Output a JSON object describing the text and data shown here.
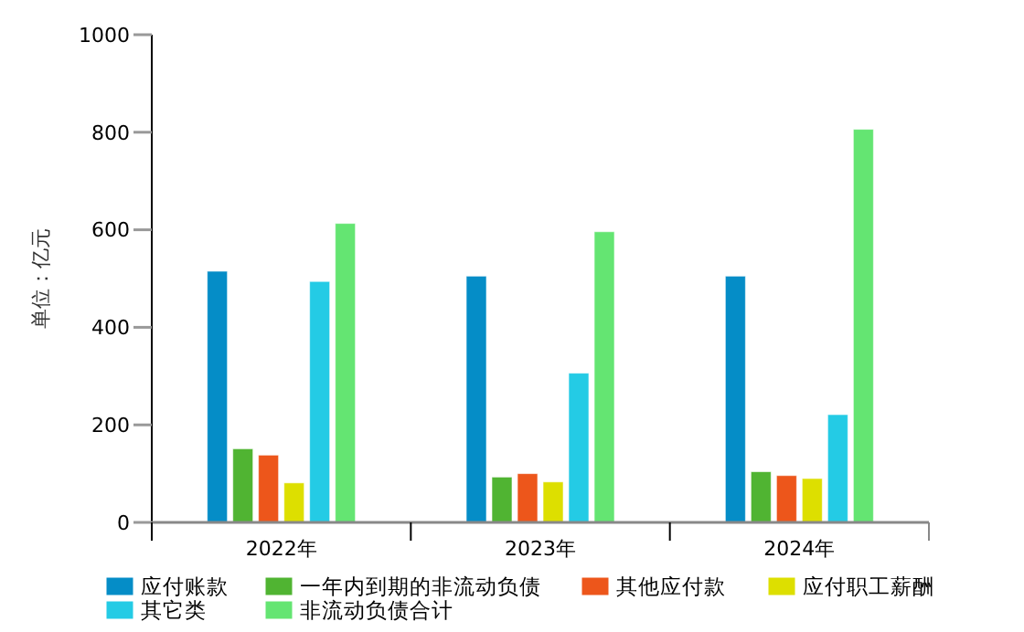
{
  "chart_data": {
    "type": "bar",
    "ylabel": "单位：亿元",
    "categories": [
      "2022年",
      "2023年",
      "2024年"
    ],
    "series": [
      {
        "name": "应付账款",
        "color": "#058dc7",
        "values": [
          515,
          505,
          505
        ]
      },
      {
        "name": "一年内到期的非流动负债",
        "color": "#50b432",
        "values": [
          151,
          93,
          104
        ]
      },
      {
        "name": "其他应付款",
        "color": "#ed561b",
        "values": [
          138,
          100,
          96
        ]
      },
      {
        "name": "应付职工薪酬",
        "color": "#dddf00",
        "values": [
          81,
          83,
          90
        ]
      },
      {
        "name": "其它类",
        "color": "#24cbe5",
        "values": [
          494,
          306,
          221
        ]
      },
      {
        "name": "非流动负债合计",
        "color": "#64e572",
        "values": [
          613,
          596,
          806
        ]
      }
    ],
    "ylim": [
      0,
      1000
    ],
    "yticks": [
      0,
      200,
      400,
      600,
      800,
      1000
    ],
    "grid": false,
    "legend": "bottom"
  }
}
